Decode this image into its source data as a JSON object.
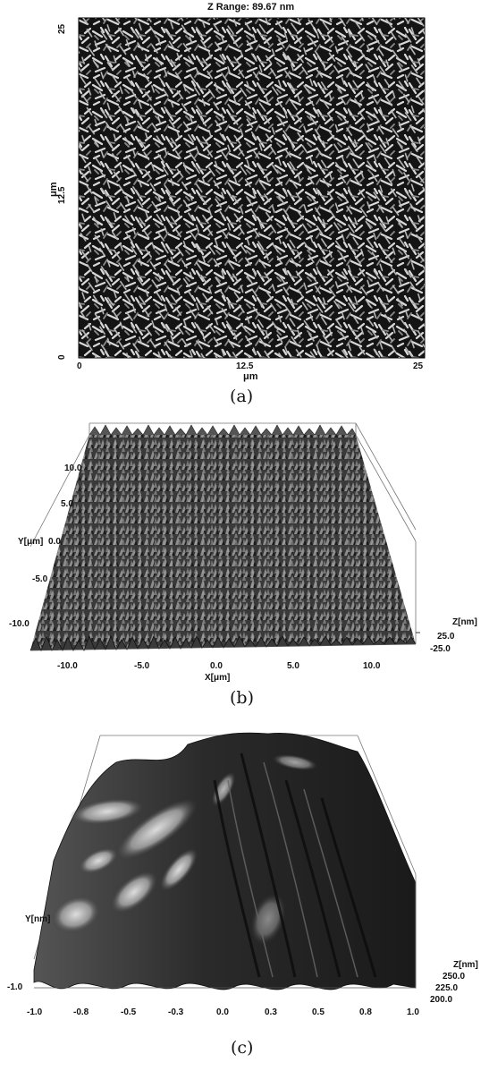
{
  "panel_a": {
    "title": "Z Range:  89.67 nm",
    "y_ticks": [
      "25",
      "12.5",
      "0"
    ],
    "y_unit": "μm",
    "x_ticks": [
      "0",
      "12.5",
      "25"
    ],
    "x_unit": "μm",
    "caption": "(a)"
  },
  "panel_b": {
    "y_label": "Y[μm]",
    "y_ticks": [
      "10.0",
      "5.0",
      "0.0",
      "-5.0",
      "-10.0"
    ],
    "x_label": "X[μm]",
    "x_ticks": [
      "-10.0",
      "-5.0",
      "0.0",
      "5.0",
      "10.0"
    ],
    "z_label": "Z[nm]",
    "z_ticks": [
      "25.0",
      "-25.0"
    ],
    "caption": "(b)"
  },
  "panel_c": {
    "y_label": "Y[nm]",
    "x_ticks": [
      "-1.0",
      "-0.8",
      "-0.5",
      "-0.3",
      "0.0",
      "0.3",
      "0.5",
      "0.8",
      "1.0"
    ],
    "y_tick_bottom": "-1.0",
    "z_label": "Z[nm]",
    "z_ticks": [
      "250.0",
      "225.0",
      "200.0"
    ],
    "caption": "(c)"
  }
}
